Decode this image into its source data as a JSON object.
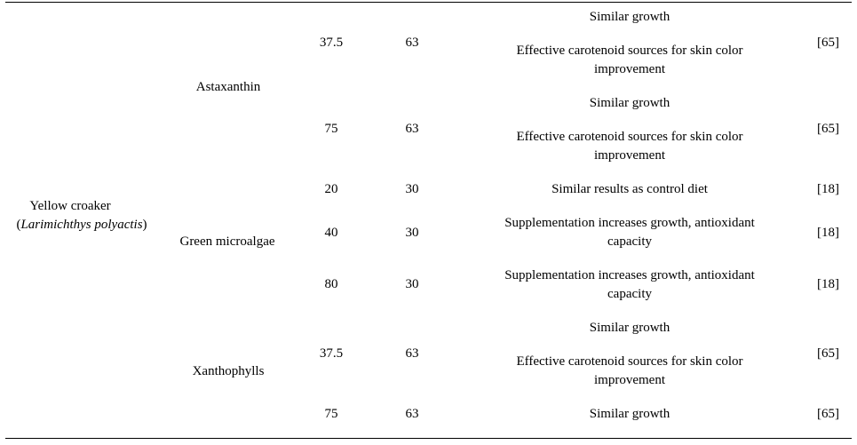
{
  "species": {
    "common": "Yellow croaker",
    "scientific": "Larimichthys polyactis"
  },
  "groups": [
    {
      "ingredient": "Astaxanthin",
      "rows": [
        {
          "level": "37.5",
          "days": "63",
          "result_lines": [
            "Similar growth",
            "Effective carotenoid sources for skin color",
            "improvement"
          ],
          "ref": "[65]"
        },
        {
          "level": "75",
          "days": "63",
          "result_lines": [
            "Similar growth",
            "Effective carotenoid sources for skin color",
            "improvement"
          ],
          "ref": "[65]"
        }
      ]
    },
    {
      "ingredient": "Green microalgae",
      "rows": [
        {
          "level": "20",
          "days": "30",
          "result_lines": [
            "Similar results as control diet"
          ],
          "ref": "[18]"
        },
        {
          "level": "40",
          "days": "30",
          "result_lines": [
            "Supplementation increases growth, antioxidant",
            "capacity"
          ],
          "ref": "[18]"
        },
        {
          "level": "80",
          "days": "30",
          "result_lines": [
            "Supplementation increases growth, antioxidant",
            "capacity"
          ],
          "ref": "[18]"
        }
      ]
    },
    {
      "ingredient": "Xanthophylls",
      "rows": [
        {
          "level": "37.5",
          "days": "63",
          "result_lines": [
            "Similar growth",
            "Effective carotenoid sources for skin color",
            "improvement"
          ],
          "ref": "[65]"
        },
        {
          "level": "75",
          "days": "63",
          "result_lines": [
            "Similar growth"
          ],
          "ref": "[65]"
        }
      ]
    }
  ]
}
